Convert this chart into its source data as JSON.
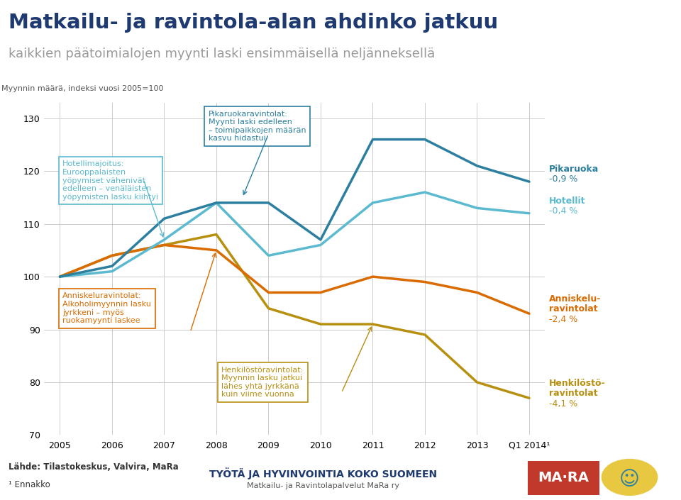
{
  "title_line1": "Matkailu- ja ravintola-alan ahdinko jatkuu",
  "title_line2": "kaikkien päätoimialojen myynti laski ensimmäisellä neljänneksellä",
  "ylabel": "Myynnin määrä, indeksi vuosi 2005=100",
  "x_labels": [
    "2005",
    "2006",
    "2007",
    "2008",
    "2009",
    "2010",
    "2011",
    "2012",
    "2013",
    "Q1 2014¹"
  ],
  "x_values": [
    0,
    1,
    2,
    3,
    4,
    5,
    6,
    7,
    8,
    9
  ],
  "ylim": [
    70,
    133
  ],
  "yticks": [
    70,
    80,
    90,
    100,
    110,
    120,
    130
  ],
  "series": {
    "pikaruoka": {
      "label": "Pikaruoka",
      "pct": "-0,9 %",
      "color": "#2c7f9f",
      "linewidth": 2.5,
      "values": [
        100,
        102,
        111,
        114,
        114,
        107,
        126,
        126,
        121,
        118
      ]
    },
    "hotellit": {
      "label": "Hotellit",
      "pct": "-0,4 %",
      "color": "#5bbacf",
      "linewidth": 2.5,
      "values": [
        100,
        101,
        107,
        114,
        104,
        106,
        114,
        116,
        113,
        112
      ]
    },
    "anniskelu": {
      "label": "Anniskelu-\nravintolat",
      "pct": "-2,4 %",
      "color": "#d96b00",
      "linewidth": 2.5,
      "values": [
        100,
        104,
        106,
        105,
        97,
        97,
        100,
        99,
        97,
        93
      ]
    },
    "henkilosto": {
      "label": "Henkilöstö-\nravintolat",
      "pct": "-4,1 %",
      "color": "#b89010",
      "linewidth": 2.5,
      "values": [
        100,
        104,
        106,
        108,
        94,
        91,
        91,
        89,
        80,
        77
      ]
    }
  },
  "bg_color": "#ffffff",
  "grid_color": "#cccccc",
  "title_color": "#1e3a70",
  "subtitle_color": "#999999",
  "footer_source": "Lähde: Tilastokeskus, Valvira, MaRa",
  "footer_note": "¹ Ennakko",
  "mara_color": "#c0392b",
  "circle_color": "#2c7f9f"
}
